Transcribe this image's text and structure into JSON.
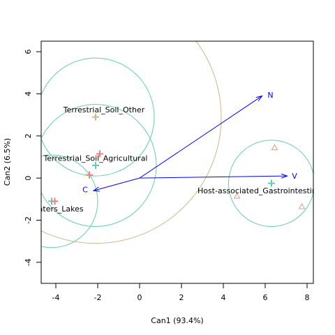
{
  "chart_data": {
    "type": "scatter",
    "xlabel": "Can1 (93.4%)",
    "ylabel": "Can2 (6.5%)",
    "xlim": [
      -4.7,
      8.3
    ],
    "ylim": [
      -5.0,
      6.5
    ],
    "xticks": [
      -4,
      -2,
      0,
      2,
      4,
      6,
      8
    ],
    "yticks": [
      -4,
      -2,
      0,
      2,
      4,
      6
    ],
    "grid": false,
    "colors": {
      "circle_teal": "#66cdaa",
      "circle_tan": "#d2b48c",
      "vector": "#0000ff",
      "point_pink": "#f08080",
      "point_tan": "#d2a08c"
    },
    "groups": [
      {
        "label": "Terrestrial_Soil_Other",
        "mean": [
          -2.1,
          2.9
        ],
        "radius": 2.8,
        "label_pos": [
          -1.7,
          3.25
        ]
      },
      {
        "label": "Terrestrial_Soil_Agricultural",
        "mean": [
          -2.1,
          0.6
        ],
        "radius": 2.9,
        "label_pos": [
          -2.1,
          0.95
        ]
      },
      {
        "label": "Freshwaters_Lakes",
        "mean": [
          -4.2,
          -1.1
        ],
        "radius": 2.2,
        "label_pos": [
          -4.4,
          -1.45
        ]
      },
      {
        "label": "Host-associated_Gastrointestinal_tract",
        "mean": [
          6.3,
          -0.25
        ],
        "radius": 2.05,
        "label_pos": [
          6.3,
          -0.6
        ]
      }
    ],
    "outer_circle": {
      "center": [
        -2.1,
        2.9
      ],
      "radius": 6.0
    },
    "points": [
      {
        "x": -2.1,
        "y": 2.9,
        "shape": "plus",
        "color": "#d2b48c"
      },
      {
        "x": -2.1,
        "y": 0.6,
        "shape": "plus",
        "color": "#66cdaa"
      },
      {
        "x": -1.9,
        "y": 1.15,
        "shape": "plus",
        "color": "#f08080"
      },
      {
        "x": -2.4,
        "y": 0.15,
        "shape": "plus",
        "color": "#f08080"
      },
      {
        "x": -4.2,
        "y": -1.1,
        "shape": "plus",
        "color": "#66cdaa"
      },
      {
        "x": -4.05,
        "y": -1.1,
        "shape": "plus",
        "color": "#f08080"
      },
      {
        "x": 6.3,
        "y": -0.25,
        "shape": "plus",
        "color": "#66cdaa"
      },
      {
        "x": 6.45,
        "y": 1.45,
        "shape": "triangle",
        "color": "#d2a08c"
      },
      {
        "x": 4.65,
        "y": -0.85,
        "shape": "triangle",
        "color": "#d2a08c"
      },
      {
        "x": 7.75,
        "y": -1.35,
        "shape": "triangle",
        "color": "#d2a08c"
      }
    ],
    "vectors": [
      {
        "label": "N",
        "x": 5.85,
        "y": 3.9,
        "label_pos": [
          6.25,
          3.95
        ]
      },
      {
        "label": "V",
        "x": 7.05,
        "y": 0.1,
        "label_pos": [
          7.4,
          0.1
        ]
      },
      {
        "label": "C",
        "x": -2.2,
        "y": -0.6,
        "label_pos": [
          -2.6,
          -0.55
        ]
      }
    ]
  }
}
